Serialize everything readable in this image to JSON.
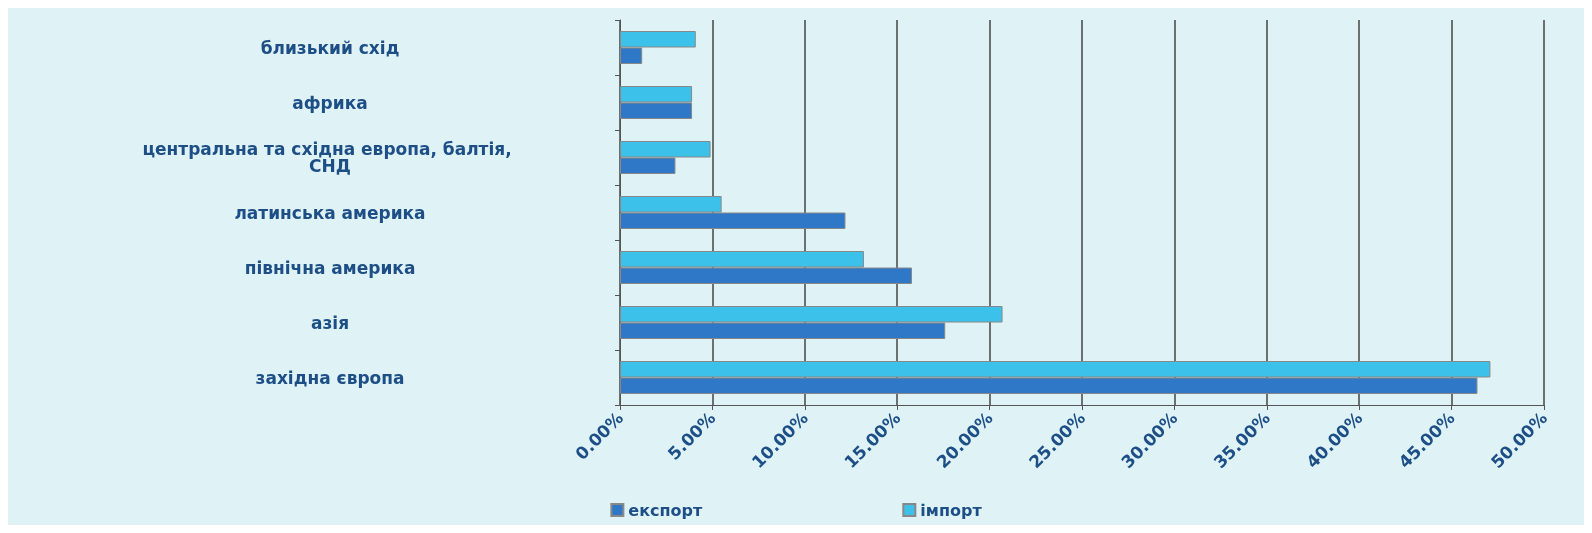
{
  "chart_data": {
    "type": "bar",
    "orientation": "horizontal",
    "categories": [
      "близький схід",
      "африка",
      "центральна та східна европа, балтія, СНД",
      "латинська америка",
      "північна америка",
      "азія",
      "західна європа"
    ],
    "series": [
      {
        "name": "експорт",
        "color": "#2f78c8",
        "values": [
          1.2,
          3.9,
          3.0,
          12.2,
          15.8,
          17.6,
          46.4
        ]
      },
      {
        "name": "імпорт",
        "color": "#3cc2ea",
        "values": [
          4.1,
          3.9,
          4.9,
          5.5,
          13.2,
          20.7,
          47.1
        ]
      }
    ],
    "xlim": [
      0,
      50
    ],
    "xticks": [
      {
        "value": 0,
        "label": "0.00%"
      },
      {
        "value": 5,
        "label": "5.00%"
      },
      {
        "value": 10,
        "label": "10.00%"
      },
      {
        "value": 15,
        "label": "15.00%"
      },
      {
        "value": 20,
        "label": "20.00%"
      },
      {
        "value": 25,
        "label": "25.00%"
      },
      {
        "value": 30,
        "label": "30.00%"
      },
      {
        "value": 35,
        "label": "35.00%"
      },
      {
        "value": 40,
        "label": "40.00%"
      },
      {
        "value": 45,
        "label": "45.00%"
      },
      {
        "value": 50,
        "label": "50.00%"
      }
    ],
    "grid": "x",
    "legend": "bottom"
  }
}
